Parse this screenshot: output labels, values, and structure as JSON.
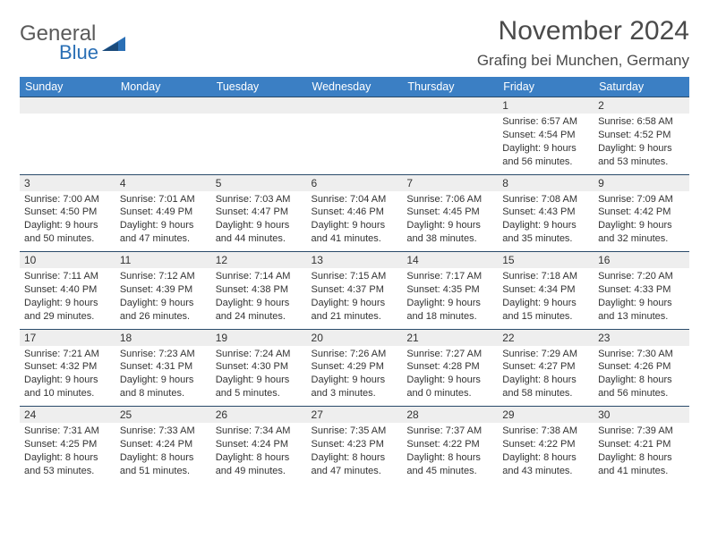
{
  "brand": {
    "general": "General",
    "blue": "Blue"
  },
  "title": "November 2024",
  "location": "Grafing bei Munchen, Germany",
  "colors": {
    "header_bg": "#3b7fc4",
    "header_text": "#ffffff",
    "daynum_bg": "#eeeeee",
    "border": "#2a4a6a",
    "text": "#333333",
    "logo_gray": "#5a5a5a",
    "logo_blue": "#2a6fb5"
  },
  "weekdays": [
    "Sunday",
    "Monday",
    "Tuesday",
    "Wednesday",
    "Thursday",
    "Friday",
    "Saturday"
  ],
  "weeks": [
    {
      "nums": [
        "",
        "",
        "",
        "",
        "",
        "1",
        "2"
      ],
      "cells": [
        "",
        "",
        "",
        "",
        "",
        "Sunrise: 6:57 AM\nSunset: 4:54 PM\nDaylight: 9 hours and 56 minutes.",
        "Sunrise: 6:58 AM\nSunset: 4:52 PM\nDaylight: 9 hours and 53 minutes."
      ]
    },
    {
      "nums": [
        "3",
        "4",
        "5",
        "6",
        "7",
        "8",
        "9"
      ],
      "cells": [
        "Sunrise: 7:00 AM\nSunset: 4:50 PM\nDaylight: 9 hours and 50 minutes.",
        "Sunrise: 7:01 AM\nSunset: 4:49 PM\nDaylight: 9 hours and 47 minutes.",
        "Sunrise: 7:03 AM\nSunset: 4:47 PM\nDaylight: 9 hours and 44 minutes.",
        "Sunrise: 7:04 AM\nSunset: 4:46 PM\nDaylight: 9 hours and 41 minutes.",
        "Sunrise: 7:06 AM\nSunset: 4:45 PM\nDaylight: 9 hours and 38 minutes.",
        "Sunrise: 7:08 AM\nSunset: 4:43 PM\nDaylight: 9 hours and 35 minutes.",
        "Sunrise: 7:09 AM\nSunset: 4:42 PM\nDaylight: 9 hours and 32 minutes."
      ]
    },
    {
      "nums": [
        "10",
        "11",
        "12",
        "13",
        "14",
        "15",
        "16"
      ],
      "cells": [
        "Sunrise: 7:11 AM\nSunset: 4:40 PM\nDaylight: 9 hours and 29 minutes.",
        "Sunrise: 7:12 AM\nSunset: 4:39 PM\nDaylight: 9 hours and 26 minutes.",
        "Sunrise: 7:14 AM\nSunset: 4:38 PM\nDaylight: 9 hours and 24 minutes.",
        "Sunrise: 7:15 AM\nSunset: 4:37 PM\nDaylight: 9 hours and 21 minutes.",
        "Sunrise: 7:17 AM\nSunset: 4:35 PM\nDaylight: 9 hours and 18 minutes.",
        "Sunrise: 7:18 AM\nSunset: 4:34 PM\nDaylight: 9 hours and 15 minutes.",
        "Sunrise: 7:20 AM\nSunset: 4:33 PM\nDaylight: 9 hours and 13 minutes."
      ]
    },
    {
      "nums": [
        "17",
        "18",
        "19",
        "20",
        "21",
        "22",
        "23"
      ],
      "cells": [
        "Sunrise: 7:21 AM\nSunset: 4:32 PM\nDaylight: 9 hours and 10 minutes.",
        "Sunrise: 7:23 AM\nSunset: 4:31 PM\nDaylight: 9 hours and 8 minutes.",
        "Sunrise: 7:24 AM\nSunset: 4:30 PM\nDaylight: 9 hours and 5 minutes.",
        "Sunrise: 7:26 AM\nSunset: 4:29 PM\nDaylight: 9 hours and 3 minutes.",
        "Sunrise: 7:27 AM\nSunset: 4:28 PM\nDaylight: 9 hours and 0 minutes.",
        "Sunrise: 7:29 AM\nSunset: 4:27 PM\nDaylight: 8 hours and 58 minutes.",
        "Sunrise: 7:30 AM\nSunset: 4:26 PM\nDaylight: 8 hours and 56 minutes."
      ]
    },
    {
      "nums": [
        "24",
        "25",
        "26",
        "27",
        "28",
        "29",
        "30"
      ],
      "cells": [
        "Sunrise: 7:31 AM\nSunset: 4:25 PM\nDaylight: 8 hours and 53 minutes.",
        "Sunrise: 7:33 AM\nSunset: 4:24 PM\nDaylight: 8 hours and 51 minutes.",
        "Sunrise: 7:34 AM\nSunset: 4:24 PM\nDaylight: 8 hours and 49 minutes.",
        "Sunrise: 7:35 AM\nSunset: 4:23 PM\nDaylight: 8 hours and 47 minutes.",
        "Sunrise: 7:37 AM\nSunset: 4:22 PM\nDaylight: 8 hours and 45 minutes.",
        "Sunrise: 7:38 AM\nSunset: 4:22 PM\nDaylight: 8 hours and 43 minutes.",
        "Sunrise: 7:39 AM\nSunset: 4:21 PM\nDaylight: 8 hours and 41 minutes."
      ]
    }
  ]
}
